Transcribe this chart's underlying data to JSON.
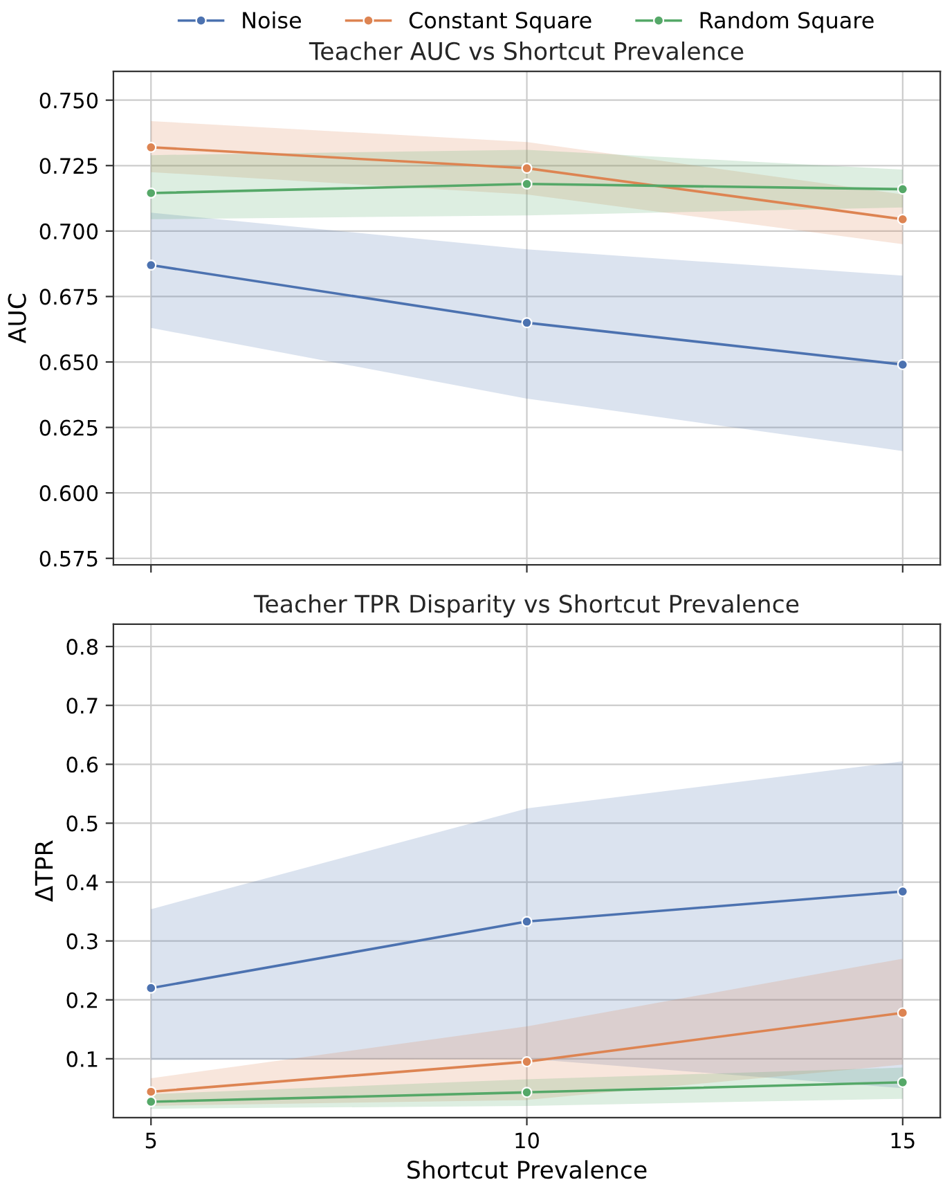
{
  "chart_data": [
    {
      "type": "line",
      "title": "Teacher AUC vs Shortcut Prevalence",
      "ylabel": "AUC",
      "x": [
        5,
        10,
        15
      ],
      "series": [
        {
          "name": "Noise",
          "color": "#4c72b0",
          "values": [
            0.687,
            0.665,
            0.649
          ],
          "lower": [
            0.663,
            0.636,
            0.616
          ],
          "upper": [
            0.707,
            0.693,
            0.683
          ]
        },
        {
          "name": "Constant Square",
          "color": "#dd8452",
          "values": [
            0.732,
            0.724,
            0.7045
          ],
          "lower": [
            0.7225,
            0.714,
            0.695
          ],
          "upper": [
            0.742,
            0.734,
            0.714
          ]
        },
        {
          "name": "Random Square",
          "color": "#55a868",
          "values": [
            0.7145,
            0.718,
            0.716
          ],
          "lower": [
            0.7045,
            0.706,
            0.709
          ],
          "upper": [
            0.729,
            0.731,
            0.7235
          ]
        }
      ],
      "xlim": [
        4.5,
        15.5
      ],
      "xticks": [
        5,
        10,
        15
      ],
      "ylim": [
        0.5725,
        0.761
      ],
      "yticks": [
        0.575,
        {
          "value": 0.6,
          "label": "0.600"
        },
        0.625,
        {
          "value": 0.65,
          "label": "0.650"
        },
        0.675,
        {
          "value": 0.7,
          "label": "0.700"
        },
        0.725,
        {
          "value": 0.75,
          "label": "0.750"
        }
      ],
      "tick_labels": "y",
      "grid": true,
      "legend": "top",
      "marker": "circle",
      "line_style": "solid"
    },
    {
      "type": "line",
      "title": "Teacher TPR Disparity vs Shortcut Prevalence",
      "xlabel": "Shortcut Prevalence",
      "ylabel": "ΔTPR",
      "x": [
        5,
        10,
        15
      ],
      "series": [
        {
          "color": "#4c72b0",
          "values": [
            0.22,
            0.333,
            0.384
          ],
          "lower": [
            0.098,
            0.1,
            0.05
          ],
          "upper": [
            0.354,
            0.525,
            0.605
          ]
        },
        {
          "color": "#dd8452",
          "values": [
            0.044,
            0.095,
            0.178
          ],
          "lower": [
            0.02,
            0.03,
            0.09
          ],
          "upper": [
            0.067,
            0.155,
            0.27
          ]
        },
        {
          "color": "#55a868",
          "values": [
            0.027,
            0.043,
            0.06
          ],
          "lower": [
            0.015,
            0.02,
            0.032
          ],
          "upper": [
            0.04,
            0.065,
            0.085
          ]
        }
      ],
      "xlim": [
        4.5,
        15.5
      ],
      "xticks": [
        5,
        10,
        15
      ],
      "ylim": [
        0.0,
        0.838
      ],
      "yticks": [
        0.1,
        0.2,
        0.3,
        0.4,
        0.5,
        0.6,
        0.7,
        0.8
      ],
      "grid": true,
      "marker": "circle",
      "line_style": "solid"
    }
  ]
}
